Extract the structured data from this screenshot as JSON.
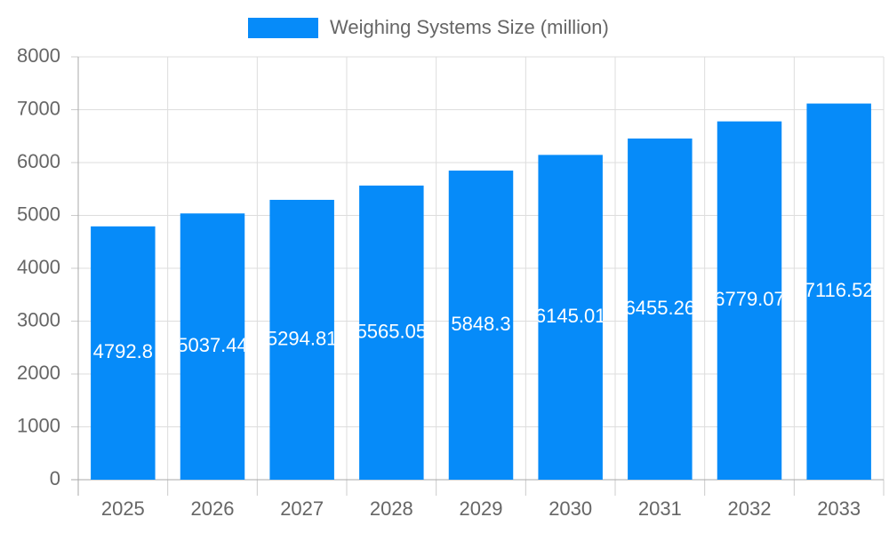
{
  "chart_data": {
    "type": "bar",
    "categories": [
      "2025",
      "2026",
      "2027",
      "2028",
      "2029",
      "2030",
      "2031",
      "2032",
      "2033"
    ],
    "series": [
      {
        "name": "Weighing Systems Size (million)",
        "color": "#068bf9",
        "values": [
          4792.8,
          5037.44,
          5294.81,
          5565.05,
          5848.3,
          6145.01,
          6455.26,
          6779.07,
          7116.52
        ]
      }
    ],
    "ylim": [
      0,
      8000
    ],
    "yticks": [
      0,
      1000,
      2000,
      3000,
      4000,
      5000,
      6000,
      7000,
      8000
    ],
    "grid": true,
    "legend": "top"
  }
}
